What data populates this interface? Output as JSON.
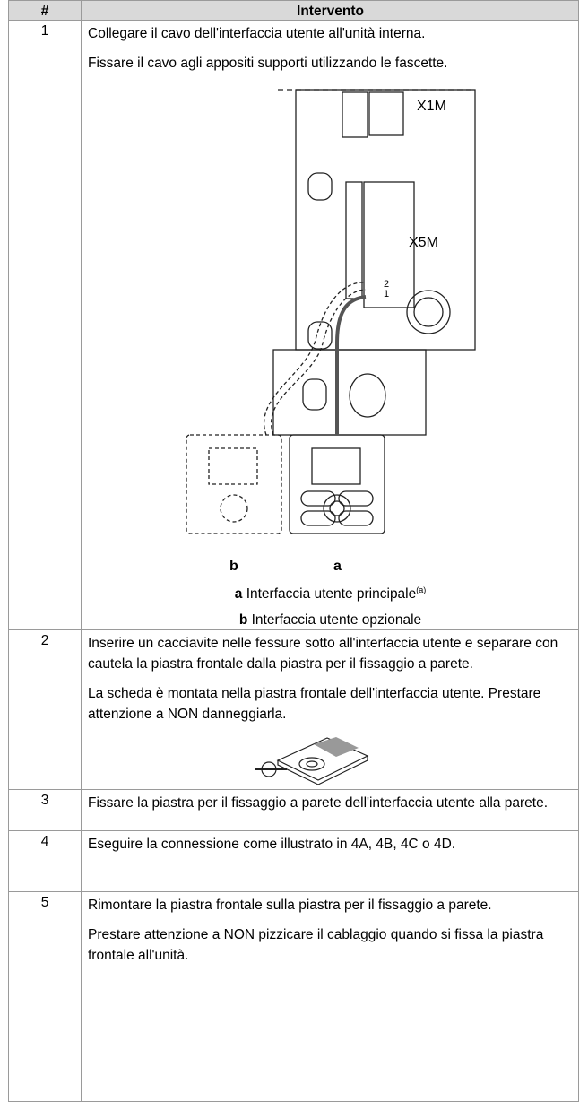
{
  "table": {
    "header": [
      "#",
      "Intervento"
    ],
    "rows": [
      {
        "step": "1",
        "paragraphs": [
          "Collegare il cavo dell'interfaccia utente all'unità interna.",
          "Fissare il cavo agli appositi supporti utilizzando le fascette."
        ],
        "figure_labels": [
          "X1M",
          "X5M",
          "2",
          "1",
          "b",
          "a"
        ],
        "captions": [
          {
            "key": "a",
            "text": "Interfaccia utente principale",
            "note": "(a)"
          },
          {
            "key": "b",
            "text": "Interfaccia utente opzionale"
          }
        ]
      },
      {
        "step": "2",
        "paragraphs": [
          "Inserire un cacciavite nelle fessure sotto all'interfaccia utente e separare con cautela la piastra frontale dalla piastra per il fissaggio a parete.",
          "La scheda è montata nella piastra frontale dell'interfaccia utente. Prestare attenzione a NON danneggiarla."
        ]
      },
      {
        "step": "3",
        "paragraphs": [
          "Fissare la piastra per il fissaggio a parete dell'interfaccia utente alla parete."
        ]
      },
      {
        "step": "4",
        "paragraphs": [
          "Eseguire la connessione come illustrato in 4A, 4B, 4C o 4D."
        ]
      },
      {
        "step": "5",
        "paragraphs": [
          "Rimontare la piastra frontale sulla piastra per il fissaggio a parete.",
          "Prestare attenzione a NON pizzicare il cablaggio quando si fissa la piastra frontale all'unità."
        ]
      }
    ]
  }
}
